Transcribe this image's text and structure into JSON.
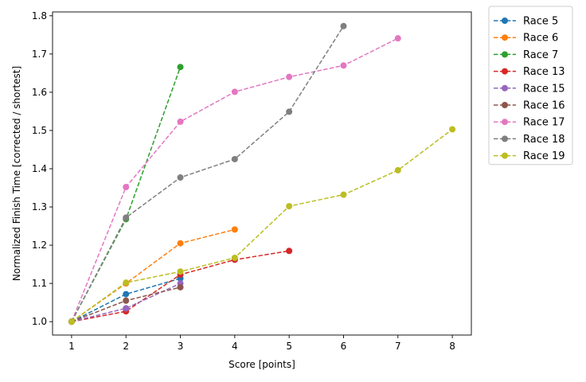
{
  "chart_data": {
    "type": "line",
    "title": "",
    "xlabel": "Score [points]",
    "ylabel": "Normalized Finish Time [corrected / shortest]",
    "xlim": [
      0.65,
      8.35
    ],
    "ylim": [
      0.965,
      1.81
    ],
    "xticks": [
      1,
      2,
      3,
      4,
      5,
      6,
      7,
      8
    ],
    "yticks": [
      1.0,
      1.1,
      1.2,
      1.3,
      1.4,
      1.5,
      1.6,
      1.7,
      1.8
    ],
    "grid": false,
    "legend_position": "outside-top-right",
    "line_style": "dashed",
    "marker": "circle",
    "series": [
      {
        "name": "Race 5",
        "color": "#1f77b4",
        "x": [
          1,
          2,
          3
        ],
        "y": [
          1.0,
          1.072,
          1.113
        ]
      },
      {
        "name": "Race 6",
        "color": "#ff7f0e",
        "x": [
          1,
          2,
          3,
          4
        ],
        "y": [
          1.0,
          1.1,
          1.205,
          1.241
        ]
      },
      {
        "name": "Race 7",
        "color": "#2ca02c",
        "x": [
          1,
          2,
          3
        ],
        "y": [
          1.0,
          1.268,
          1.666
        ]
      },
      {
        "name": "Race 13",
        "color": "#d62728",
        "x": [
          1,
          2,
          3,
          4,
          5
        ],
        "y": [
          1.0,
          1.027,
          1.123,
          1.162,
          1.185
        ]
      },
      {
        "name": "Race 15",
        "color": "#9467bd",
        "x": [
          1,
          2,
          3
        ],
        "y": [
          1.0,
          1.035,
          1.1
        ]
      },
      {
        "name": "Race 16",
        "color": "#8c564b",
        "x": [
          1,
          2,
          3
        ],
        "y": [
          1.0,
          1.055,
          1.09
        ]
      },
      {
        "name": "Race 17",
        "color": "#e377c2",
        "x": [
          1,
          2,
          3,
          4,
          5,
          6,
          7
        ],
        "y": [
          1.0,
          1.352,
          1.523,
          1.601,
          1.64,
          1.67,
          1.741
        ]
      },
      {
        "name": "Race 18",
        "color": "#7f7f7f",
        "x": [
          1,
          2,
          3,
          4,
          5,
          6
        ],
        "y": [
          1.0,
          1.272,
          1.377,
          1.425,
          1.549,
          1.773
        ]
      },
      {
        "name": "Race 19",
        "color": "#bcbd22",
        "x": [
          1,
          2,
          3,
          4,
          5,
          6,
          7,
          8
        ],
        "y": [
          1.0,
          1.102,
          1.131,
          1.167,
          1.302,
          1.332,
          1.396,
          1.503
        ]
      }
    ]
  }
}
